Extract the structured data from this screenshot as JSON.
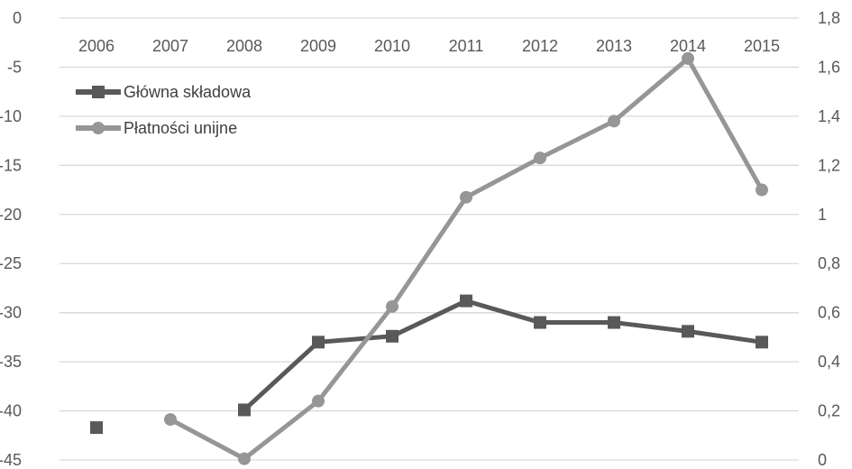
{
  "chart_data": {
    "type": "line",
    "categories": [
      "2006",
      "2007",
      "2008",
      "2009",
      "2010",
      "2011",
      "2012",
      "2013",
      "2014",
      "2015"
    ],
    "y_left": {
      "range": [
        -45,
        0
      ],
      "ticks": [
        0,
        -5,
        -10,
        -15,
        -20,
        -25,
        -30,
        -35,
        -40,
        -45
      ],
      "tick_labels": [
        "0",
        "-5",
        "-10",
        "-15",
        "-20",
        "-25",
        "-30",
        "-35",
        "-40",
        "-45"
      ]
    },
    "y_right": {
      "range": [
        0,
        1.8
      ],
      "ticks": [
        1.8,
        1.6,
        1.4,
        1.2,
        1,
        0.8,
        0.6,
        0.4,
        0.2,
        0
      ],
      "tick_labels": [
        "1,8",
        "1,6",
        "1,4",
        "1,2",
        "1",
        "0,8",
        "0,6",
        "0,4",
        "0,2",
        "0"
      ]
    },
    "grid": true,
    "legend_position": "top-left",
    "series": [
      {
        "name": "Główna  składowa",
        "axis": "left",
        "marker": "square",
        "color": "#595959",
        "values": [
          -41.7,
          null,
          -39.9,
          -33.0,
          -32.4,
          -28.8,
          -31.0,
          -31.0,
          -31.9,
          -33.0
        ]
      },
      {
        "name": "Płatności unijne",
        "axis": "right",
        "marker": "circle",
        "color": "#969696",
        "values": [
          null,
          0.165,
          0.005,
          0.24,
          0.625,
          1.07,
          1.23,
          1.38,
          1.635,
          1.1
        ]
      }
    ]
  }
}
